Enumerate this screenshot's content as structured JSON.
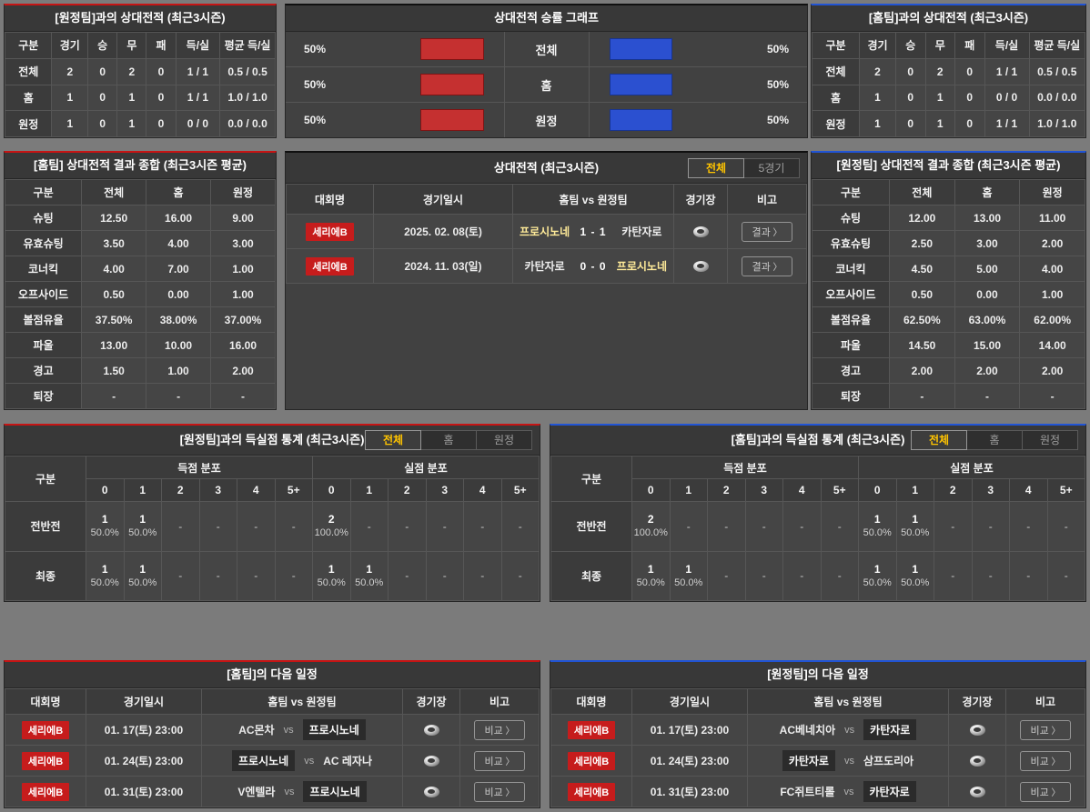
{
  "colors": {
    "accent_red": "#c61414",
    "accent_blue": "#2154d4",
    "tab_active_text": "#ffc400",
    "bar_red": "#c53030",
    "bar_blue": "#2b50d0",
    "league_badge_red": "#c61c1c",
    "team_highlight_text": "#ffeb99"
  },
  "chart_data": {
    "type": "bar",
    "title": "상대전적 승률 그래프",
    "categories": [
      "전체",
      "홈",
      "원정"
    ],
    "series": [
      {
        "name": "홈팀 승률(좌측/적색)",
        "values": [
          50,
          50,
          50
        ],
        "color": "#c53030"
      },
      {
        "name": "원정팀 승률(우측/청색)",
        "values": [
          50,
          50,
          50
        ],
        "color": "#2b50d0"
      }
    ],
    "unit": "%",
    "xlim": [
      0,
      100
    ],
    "legend": "none",
    "grid": false
  },
  "panels": {
    "away_h2h": {
      "title": "[원정팀]과의 상대전적 (최근3시즌)",
      "headers": [
        "구분",
        "경기",
        "승",
        "무",
        "패",
        "득/실",
        "평균 득/실"
      ],
      "rows": [
        [
          "전체",
          "2",
          "0",
          "2",
          "0",
          "1 / 1",
          "0.5 / 0.5"
        ],
        [
          "홈",
          "1",
          "0",
          "1",
          "0",
          "1 / 1",
          "1.0 / 1.0"
        ],
        [
          "원정",
          "1",
          "0",
          "1",
          "0",
          "0 / 0",
          "0.0 / 0.0"
        ]
      ]
    },
    "win_graph": {
      "title": "상대전적 승률 그래프",
      "rows": [
        {
          "left_label": "50%",
          "left_value": 50,
          "category": "전체",
          "right_value": 50,
          "right_label": "50%"
        },
        {
          "left_label": "50%",
          "left_value": 50,
          "category": "홈",
          "right_value": 50,
          "right_label": "50%"
        },
        {
          "left_label": "50%",
          "left_value": 50,
          "category": "원정",
          "right_value": 50,
          "right_label": "50%"
        }
      ]
    },
    "home_h2h": {
      "title": "[홈팀]과의 상대전적 (최근3시즌)",
      "headers": [
        "구분",
        "경기",
        "승",
        "무",
        "패",
        "득/실",
        "평균 득/실"
      ],
      "rows": [
        [
          "전체",
          "2",
          "0",
          "2",
          "0",
          "1 / 1",
          "0.5 / 0.5"
        ],
        [
          "홈",
          "1",
          "0",
          "1",
          "0",
          "0 / 0",
          "0.0 / 0.0"
        ],
        [
          "원정",
          "1",
          "0",
          "1",
          "0",
          "1 / 1",
          "1.0 / 1.0"
        ]
      ]
    },
    "home_summary": {
      "title": "[홈팀] 상대전적 결과 종합 (최근3시즌 평균)",
      "headers": [
        "구분",
        "전체",
        "홈",
        "원정"
      ],
      "rows": [
        [
          "슈팅",
          "12.50",
          "16.00",
          "9.00"
        ],
        [
          "유효슈팅",
          "3.50",
          "4.00",
          "3.00"
        ],
        [
          "코너킥",
          "4.00",
          "7.00",
          "1.00"
        ],
        [
          "오프사이드",
          "0.50",
          "0.00",
          "1.00"
        ],
        [
          "볼점유율",
          "37.50%",
          "38.00%",
          "37.00%"
        ],
        [
          "파울",
          "13.00",
          "10.00",
          "16.00"
        ],
        [
          "경고",
          "1.50",
          "1.00",
          "2.00"
        ],
        [
          "퇴장",
          "-",
          "-",
          "-"
        ]
      ]
    },
    "matches": {
      "title": "상대전적 (최근3시즌)",
      "tabs": [
        {
          "label": "전체",
          "active": true
        },
        {
          "label": "5경기",
          "active": false
        }
      ],
      "headers": [
        "대회명",
        "경기일시",
        "홈팀  vs  원정팀",
        "경기장",
        "비고"
      ],
      "button_label": "결과",
      "rows": [
        {
          "league": "세리에B",
          "datetime": "2025. 02. 08(토)",
          "home": "프로시노네",
          "score": "1 - 1",
          "away": "카탄자로",
          "highlight": "home"
        },
        {
          "league": "세리에B",
          "datetime": "2024. 11. 03(일)",
          "home": "카탄자로",
          "score": "0 - 0",
          "away": "프로시노네",
          "highlight": "away"
        }
      ]
    },
    "away_summary": {
      "title": "[원정팀] 상대전적 결과 종합 (최근3시즌 평균)",
      "headers": [
        "구분",
        "전체",
        "홈",
        "원정"
      ],
      "rows": [
        [
          "슈팅",
          "12.00",
          "13.00",
          "11.00"
        ],
        [
          "유효슈팅",
          "2.50",
          "3.00",
          "2.00"
        ],
        [
          "코너킥",
          "4.50",
          "5.00",
          "4.00"
        ],
        [
          "오프사이드",
          "0.50",
          "0.00",
          "1.00"
        ],
        [
          "볼점유율",
          "62.50%",
          "63.00%",
          "62.00%"
        ],
        [
          "파울",
          "14.50",
          "15.00",
          "14.00"
        ],
        [
          "경고",
          "2.00",
          "2.00",
          "2.00"
        ],
        [
          "퇴장",
          "-",
          "-",
          "-"
        ]
      ]
    },
    "away_goal_stats": {
      "title": "[원정팀]과의 득실점 통계 (최근3시즌)",
      "tabs": [
        {
          "label": "전체",
          "active": true
        },
        {
          "label": "홈",
          "active": false
        },
        {
          "label": "원정",
          "active": false
        }
      ],
      "corner_header": "구분",
      "group_headers": [
        "득점 분포",
        "실점 분포"
      ],
      "cols": [
        "0",
        "1",
        "2",
        "3",
        "4",
        "5+"
      ],
      "empty": "-",
      "rows": [
        {
          "label": "전반전",
          "score": [
            {
              "count": "1",
              "pct": "50.0%"
            },
            {
              "count": "1",
              "pct": "50.0%"
            },
            null,
            null,
            null,
            null
          ],
          "concede": [
            {
              "count": "2",
              "pct": "100.0%"
            },
            null,
            null,
            null,
            null,
            null
          ]
        },
        {
          "label": "최종",
          "score": [
            {
              "count": "1",
              "pct": "50.0%"
            },
            {
              "count": "1",
              "pct": "50.0%"
            },
            null,
            null,
            null,
            null
          ],
          "concede": [
            {
              "count": "1",
              "pct": "50.0%"
            },
            {
              "count": "1",
              "pct": "50.0%"
            },
            null,
            null,
            null,
            null
          ]
        }
      ]
    },
    "home_goal_stats": {
      "title": "[홈팀]과의 득실점 통계 (최근3시즌)",
      "tabs": [
        {
          "label": "전체",
          "active": true
        },
        {
          "label": "홈",
          "active": false
        },
        {
          "label": "원정",
          "active": false
        }
      ],
      "corner_header": "구분",
      "group_headers": [
        "득점 분포",
        "실점 분포"
      ],
      "cols": [
        "0",
        "1",
        "2",
        "3",
        "4",
        "5+"
      ],
      "empty": "-",
      "rows": [
        {
          "label": "전반전",
          "score": [
            {
              "count": "2",
              "pct": "100.0%"
            },
            null,
            null,
            null,
            null,
            null
          ],
          "concede": [
            {
              "count": "1",
              "pct": "50.0%"
            },
            {
              "count": "1",
              "pct": "50.0%"
            },
            null,
            null,
            null,
            null
          ]
        },
        {
          "label": "최종",
          "score": [
            {
              "count": "1",
              "pct": "50.0%"
            },
            {
              "count": "1",
              "pct": "50.0%"
            },
            null,
            null,
            null,
            null
          ],
          "concede": [
            {
              "count": "1",
              "pct": "50.0%"
            },
            {
              "count": "1",
              "pct": "50.0%"
            },
            null,
            null,
            null,
            null
          ]
        }
      ]
    },
    "home_schedule": {
      "title": "[홈팀]의 다음 일정",
      "headers": [
        "대회명",
        "경기일시",
        "홈팀  vs  원정팀",
        "경기장",
        "비고"
      ],
      "vs_label": "vs",
      "button_label": "비교",
      "rows": [
        {
          "league": "세리에B",
          "datetime": "01. 17(토) 23:00",
          "home": "AC몬차",
          "away": "프로시노네",
          "highlight": "away"
        },
        {
          "league": "세리에B",
          "datetime": "01. 24(토) 23:00",
          "home": "프로시노네",
          "away": "AC 레자나",
          "highlight": "home"
        },
        {
          "league": "세리에B",
          "datetime": "01. 31(토) 23:00",
          "home": "V엔텔라",
          "away": "프로시노네",
          "highlight": "away"
        }
      ]
    },
    "away_schedule": {
      "title": "[원정팀]의 다음 일정",
      "headers": [
        "대회명",
        "경기일시",
        "홈팀  vs  원정팀",
        "경기장",
        "비고"
      ],
      "vs_label": "vs",
      "button_label": "비교",
      "rows": [
        {
          "league": "세리에B",
          "datetime": "01. 17(토) 23:00",
          "home": "AC베네치아",
          "away": "카탄자로",
          "highlight": "away"
        },
        {
          "league": "세리에B",
          "datetime": "01. 24(토) 23:00",
          "home": "카탄자로",
          "away": "삼프도리아",
          "highlight": "home"
        },
        {
          "league": "세리에B",
          "datetime": "01. 31(토) 23:00",
          "home": "FC쥐트티롤",
          "away": "카탄자로",
          "highlight": "away"
        }
      ]
    }
  }
}
